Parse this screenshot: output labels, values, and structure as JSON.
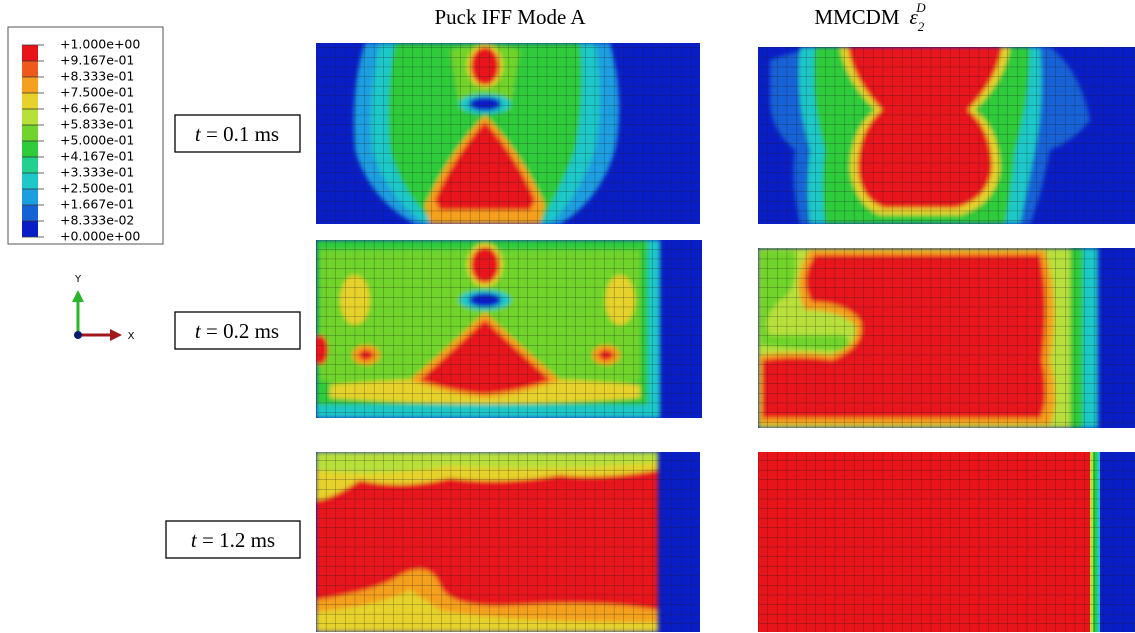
{
  "legend": {
    "labels": [
      "+1.000e+00",
      "+9.167e-01",
      "+8.333e-01",
      "+7.500e-01",
      "+6.667e-01",
      "+5.833e-01",
      "+5.000e-01",
      "+4.167e-01",
      "+3.333e-01",
      "+2.500e-01",
      "+1.667e-01",
      "+8.333e-02",
      "+0.000e+00"
    ],
    "colors": [
      "#e8141a",
      "#ef5a1c",
      "#f5a01e",
      "#e6d22a",
      "#b8e03a",
      "#70d42c",
      "#2ecb3a",
      "#22d190",
      "#1ec8c8",
      "#1a9ee0",
      "#1462d6",
      "#0a1ec8"
    ]
  },
  "triad": {
    "y": "Y",
    "x": "X"
  },
  "columns": [
    {
      "title": "Puck IFF Mode A"
    },
    {
      "title": "MMCDM",
      "symbol": "ε",
      "sub": "2",
      "sup": "D"
    }
  ],
  "rows": [
    {
      "var": "t",
      "text": "= 0.1 ms"
    },
    {
      "var": "t",
      "text": "= 0.2 ms"
    },
    {
      "var": "t",
      "text": "= 1.2 ms"
    }
  ]
}
